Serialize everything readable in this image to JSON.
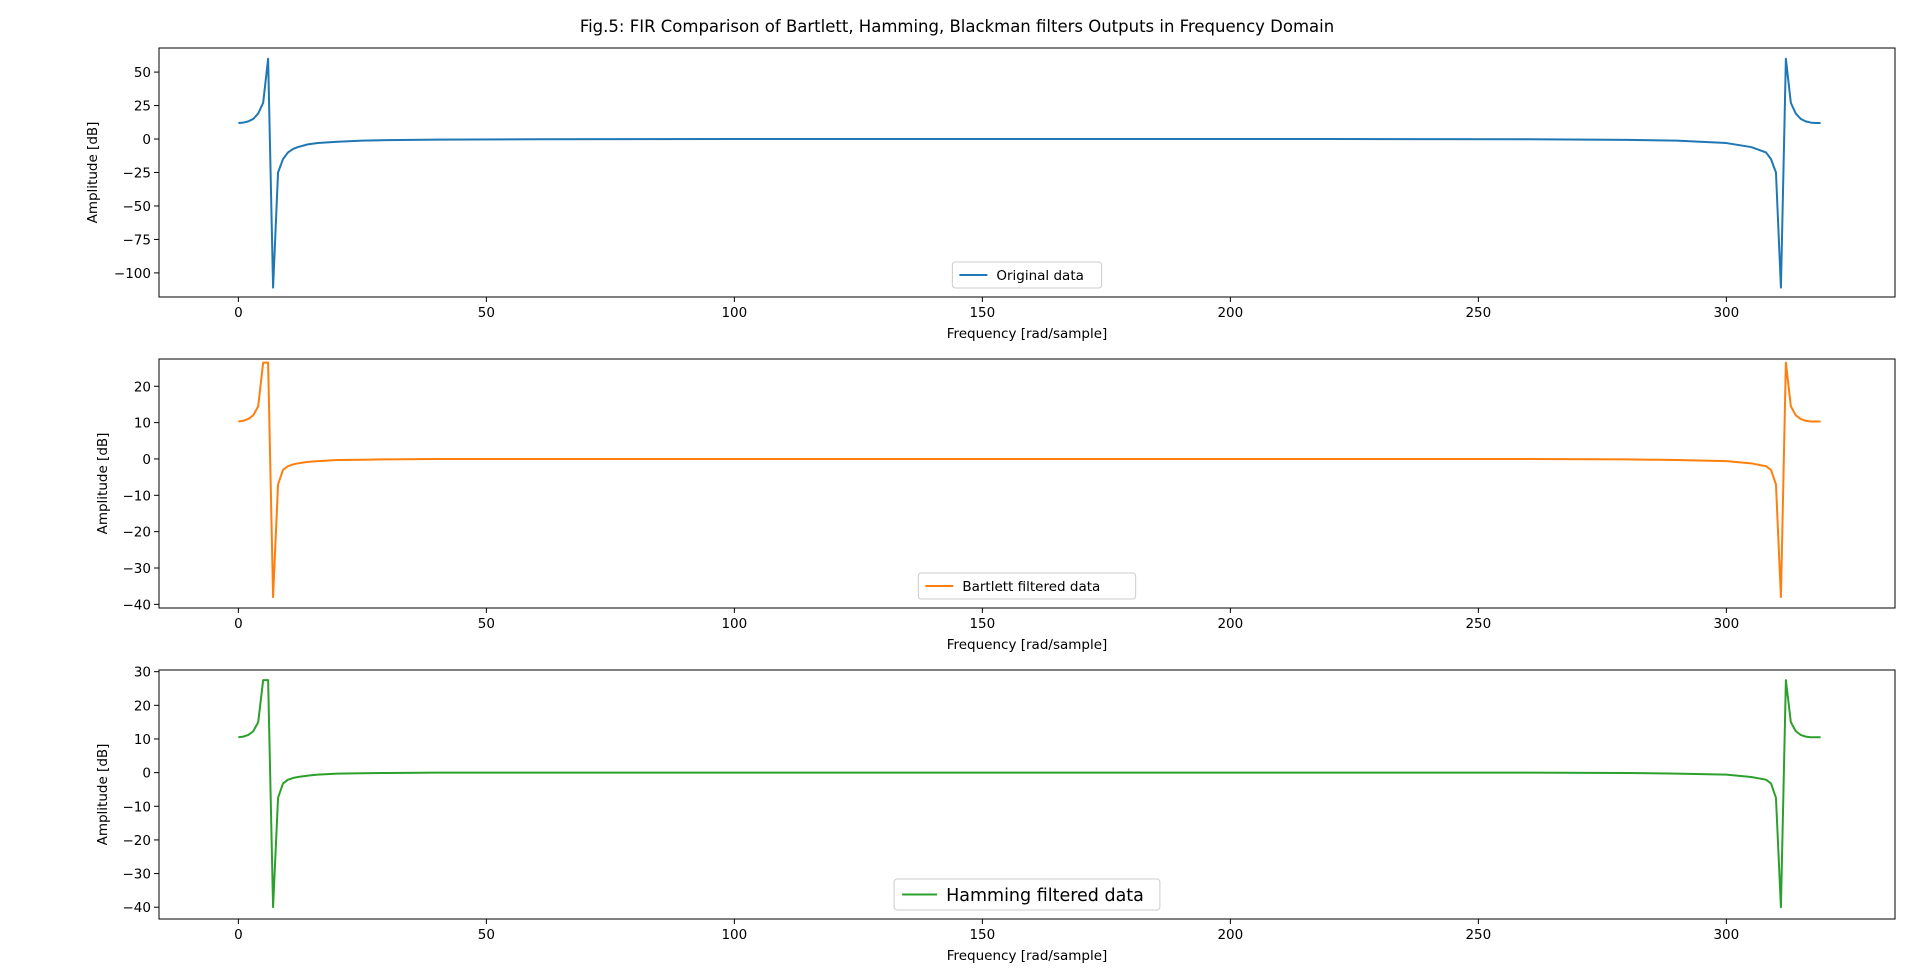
{
  "figure": {
    "title": "Fig.5: FIR Comparison of Bartlett, Hamming, Blackman filters Outputs in Frequency Domain"
  },
  "chart_data": [
    {
      "type": "line",
      "xlabel": "Frequency [rad/sample]",
      "ylabel": "Amplitude [dB]",
      "xlim": [
        -16,
        334
      ],
      "ylim": [
        -118,
        68
      ],
      "xticks": [
        0,
        50,
        100,
        150,
        200,
        250,
        300
      ],
      "yticks": [
        50,
        25,
        0,
        -25,
        -50,
        -75,
        -100
      ],
      "legend": "lower center",
      "grid": false,
      "series": [
        {
          "name": "Original data",
          "color": "#1f77b4",
          "x": [
            0,
            1,
            2,
            3,
            4,
            5,
            6,
            7,
            8,
            9,
            10,
            11,
            12,
            14,
            16,
            20,
            25,
            30,
            40,
            60,
            100,
            160,
            220,
            260,
            280,
            290,
            300,
            305,
            308,
            309,
            310,
            311,
            312,
            313,
            314,
            315,
            316,
            317,
            318,
            319
          ],
          "y": [
            12,
            12.3,
            13.2,
            15,
            19,
            27,
            60,
            -111,
            -25,
            -15,
            -10,
            -7.5,
            -6,
            -4,
            -3,
            -2,
            -1.2,
            -0.8,
            -0.4,
            -0.2,
            0,
            0,
            0,
            -0.2,
            -0.6,
            -1.2,
            -3,
            -6,
            -10,
            -15,
            -25,
            -111,
            60,
            27,
            19,
            15,
            13.2,
            12.3,
            12,
            12
          ]
        },
        {
          "name": "Bartlett filtered data",
          "color": "#ff7f0e",
          "x": [
            0,
            1,
            2,
            3,
            4,
            5,
            6,
            7,
            8,
            9,
            10,
            11,
            12,
            14,
            16,
            20,
            25,
            30,
            40,
            60,
            100,
            160,
            220,
            260,
            280,
            290,
            300,
            305,
            308,
            309,
            310,
            311,
            312,
            313,
            314,
            315,
            316,
            317,
            318,
            319
          ],
          "y": [
            10.3,
            10.5,
            11,
            12,
            14.5,
            26.5,
            26.5,
            -38,
            -7,
            -3,
            -2,
            -1.5,
            -1.2,
            -0.8,
            -0.6,
            -0.3,
            -0.2,
            -0.1,
            0,
            0,
            0,
            0,
            0,
            0,
            -0.1,
            -0.3,
            -0.6,
            -1.2,
            -2,
            -3,
            -7,
            -38,
            26.5,
            14.5,
            12,
            11,
            10.5,
            10.3,
            10.3,
            10.3
          ]
        },
        {
          "name": "Hamming filtered data",
          "color": "#2ca02c",
          "x": [
            0,
            1,
            2,
            3,
            4,
            5,
            6,
            7,
            8,
            9,
            10,
            11,
            12,
            14,
            16,
            20,
            25,
            30,
            40,
            60,
            100,
            160,
            220,
            260,
            280,
            290,
            300,
            305,
            308,
            309,
            310,
            311,
            312,
            313,
            314,
            315,
            316,
            317,
            318,
            319
          ],
          "y": [
            10.5,
            10.7,
            11.2,
            12.3,
            15,
            27.5,
            27.5,
            -40,
            -7.5,
            -3.2,
            -2.1,
            -1.6,
            -1.3,
            -0.9,
            -0.6,
            -0.3,
            -0.2,
            -0.1,
            0,
            0,
            0,
            0,
            0,
            0,
            -0.1,
            -0.3,
            -0.6,
            -1.3,
            -2.1,
            -3.2,
            -7.5,
            -40,
            27.5,
            15,
            12.3,
            11.2,
            10.7,
            10.5,
            10.5,
            10.5
          ]
        }
      ]
    },
    {
      "type": "line",
      "xlabel": "Frequency [rad/sample]",
      "ylabel": "Amplitude [dB]",
      "xlim": [
        -16,
        334
      ],
      "ylim": [
        -41,
        27.5
      ],
      "xticks": [
        0,
        50,
        100,
        150,
        200,
        250,
        300
      ],
      "yticks": [
        20,
        10,
        0,
        -10,
        -20,
        -30,
        -40
      ],
      "legend": "lower center",
      "grid": false,
      "series": []
    },
    {
      "type": "line",
      "xlabel": "Frequency [rad/sample]",
      "ylabel": "Amplitude [dB]",
      "xlim": [
        -16,
        334
      ],
      "ylim": [
        -43.5,
        30.5
      ],
      "xticks": [
        0,
        50,
        100,
        150,
        200,
        250,
        300
      ],
      "yticks": [
        30,
        20,
        10,
        0,
        -10,
        -20,
        -30,
        -40
      ],
      "legend": "lower center",
      "grid": false,
      "series": []
    }
  ]
}
